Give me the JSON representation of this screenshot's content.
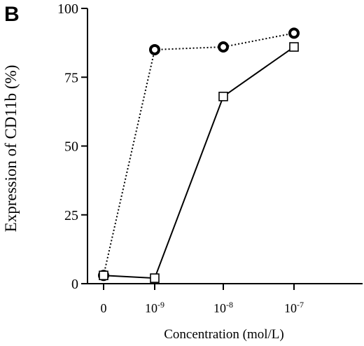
{
  "chart_data": {
    "type": "line",
    "panel_label": "B",
    "xlabel": "Concentration (mol/L)",
    "ylabel": "Expression of CD11b (%)",
    "ylim": [
      0,
      100
    ],
    "yticks": [
      "0",
      "25",
      "50",
      "75",
      "100"
    ],
    "categories": [
      {
        "base": "0",
        "exp": ""
      },
      {
        "base": "10",
        "exp": "-9"
      },
      {
        "base": "10",
        "exp": "-8"
      },
      {
        "base": "10",
        "exp": "-7"
      }
    ],
    "series": [
      {
        "marker": "circle",
        "line_style": "dotted",
        "values": [
          3,
          85,
          86,
          91
        ]
      },
      {
        "marker": "square",
        "line_style": "solid",
        "values": [
          3,
          2,
          68,
          86
        ]
      }
    ],
    "legend": "none",
    "grid": false
  }
}
